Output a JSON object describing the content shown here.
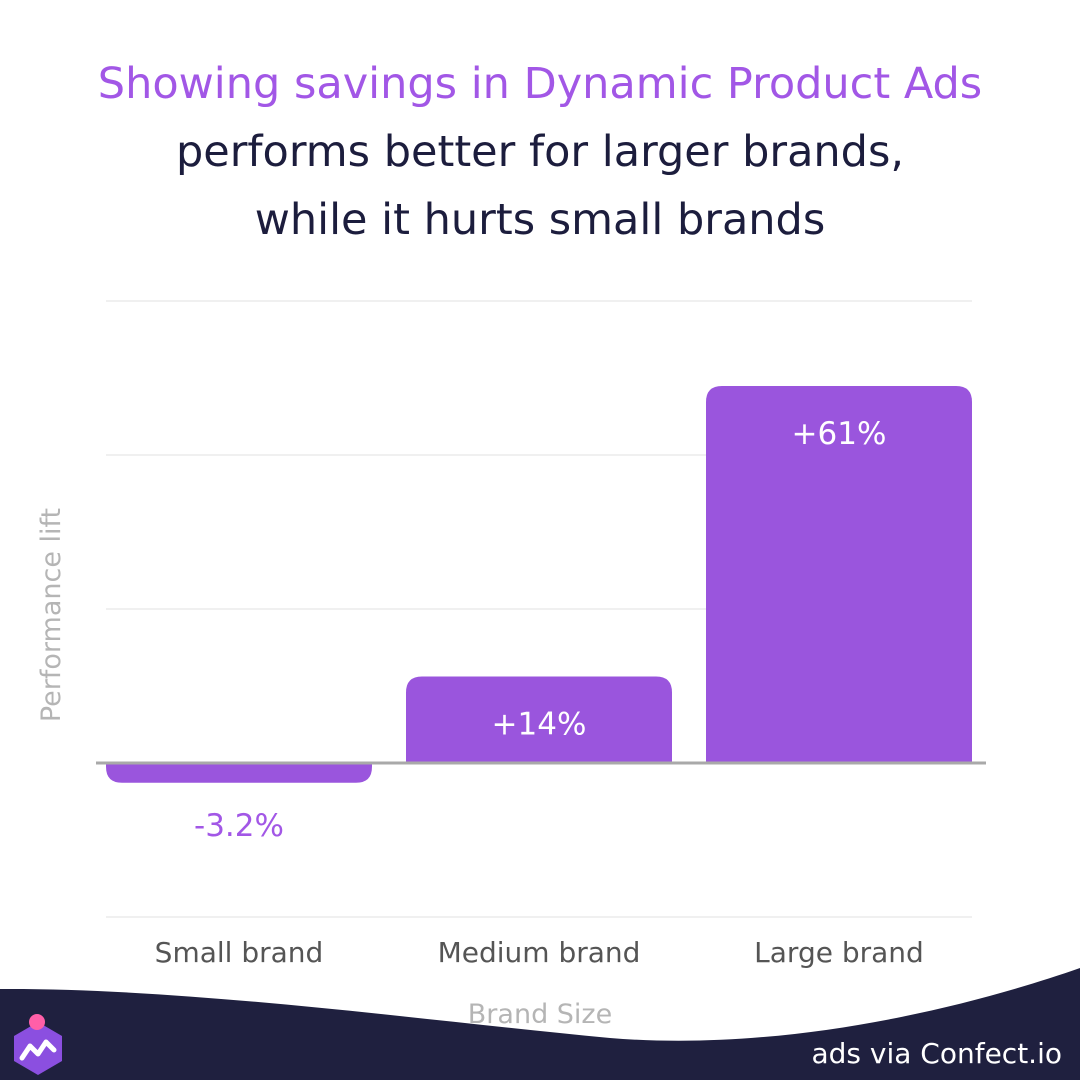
{
  "title": {
    "line1": "Showing savings in Dynamic Product Ads",
    "line2": "performs better for larger brands,",
    "line3": "while it hurts small brands"
  },
  "colors": {
    "accent": "#a257e6",
    "bar": "#9a55dd",
    "title_dark": "#1c1d3d",
    "axis_text": "#9c9c9c",
    "footer_bg": "#1f203f"
  },
  "chart_data": {
    "type": "bar",
    "categories": [
      "Small brand",
      "Medium brand",
      "Large brand"
    ],
    "values": [
      -3.2,
      14,
      61
    ],
    "data_labels": [
      "-3.2%",
      "+14%",
      "+61%"
    ],
    "xlabel": "Brand Size",
    "ylabel": "Performance lift",
    "grid": true,
    "legend": "none"
  },
  "footer": {
    "credit": "ads via Confect.io",
    "logo_icon": "confect-logo-icon"
  }
}
